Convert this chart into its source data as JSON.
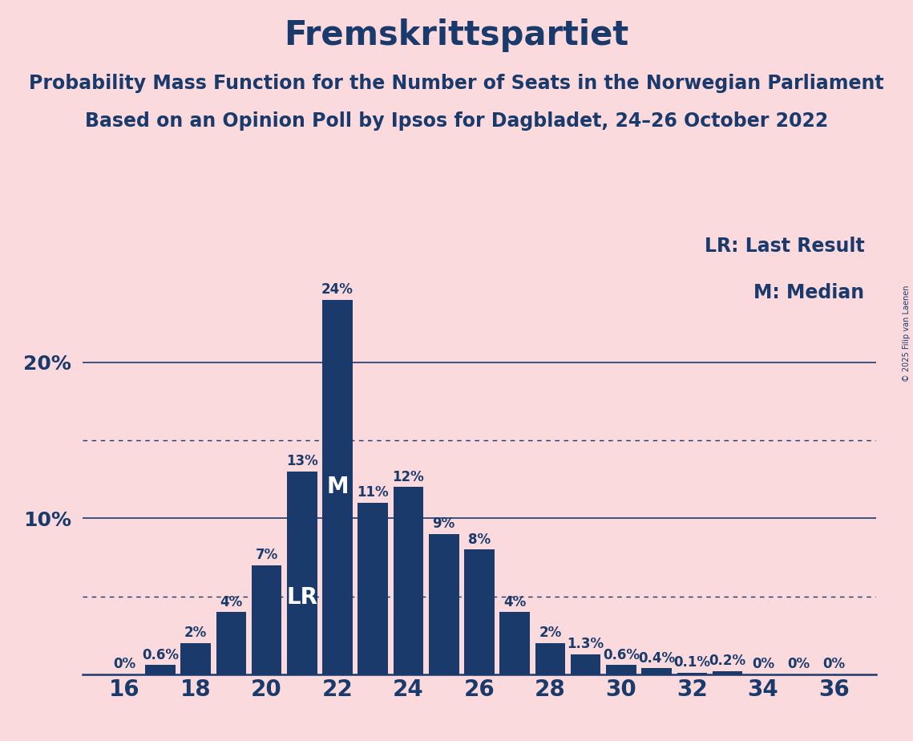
{
  "title": "Fremskrittspartiet",
  "subtitle1": "Probability Mass Function for the Number of Seats in the Norwegian Parliament",
  "subtitle2": "Based on an Opinion Poll by Ipsos for Dagbladet, 24–26 October 2022",
  "copyright": "© 2025 Filip van Laenen",
  "legend_lr": "LR: Last Result",
  "legend_m": "M: Median",
  "seats": [
    16,
    17,
    18,
    19,
    20,
    21,
    22,
    23,
    24,
    25,
    26,
    27,
    28,
    29,
    30,
    31,
    32,
    33,
    34,
    35,
    36
  ],
  "probs": [
    0.0,
    0.006,
    0.02,
    0.04,
    0.07,
    0.13,
    0.24,
    0.11,
    0.12,
    0.09,
    0.08,
    0.04,
    0.02,
    0.013,
    0.006,
    0.004,
    0.001,
    0.002,
    0.0,
    0.0,
    0.0
  ],
  "prob_labels": [
    "0%",
    "0.6%",
    "2%",
    "4%",
    "7%",
    "13%",
    "24%",
    "11%",
    "12%",
    "9%",
    "8%",
    "4%",
    "2%",
    "1.3%",
    "0.6%",
    "0.4%",
    "0.1%",
    "0.2%",
    "0%",
    "0%",
    "0%"
  ],
  "bar_color": "#1a3a6b",
  "background_color": "#fadadd",
  "text_color": "#1a3a6b",
  "dotted_line_color": "#1a3a6b",
  "solid_line_color": "#1a3a6b",
  "lr_seat": 21,
  "median_seat": 22,
  "yticks": [
    0.0,
    0.1,
    0.2
  ],
  "ytick_labels": [
    "",
    "10%",
    "20%"
  ],
  "dotted_lines": [
    0.15,
    0.05
  ],
  "title_fontsize": 30,
  "subtitle_fontsize": 17,
  "tick_fontsize": 18,
  "legend_fontsize": 17,
  "bar_label_fontsize": 12,
  "lr_label_fontsize": 20,
  "m_label_fontsize": 20
}
